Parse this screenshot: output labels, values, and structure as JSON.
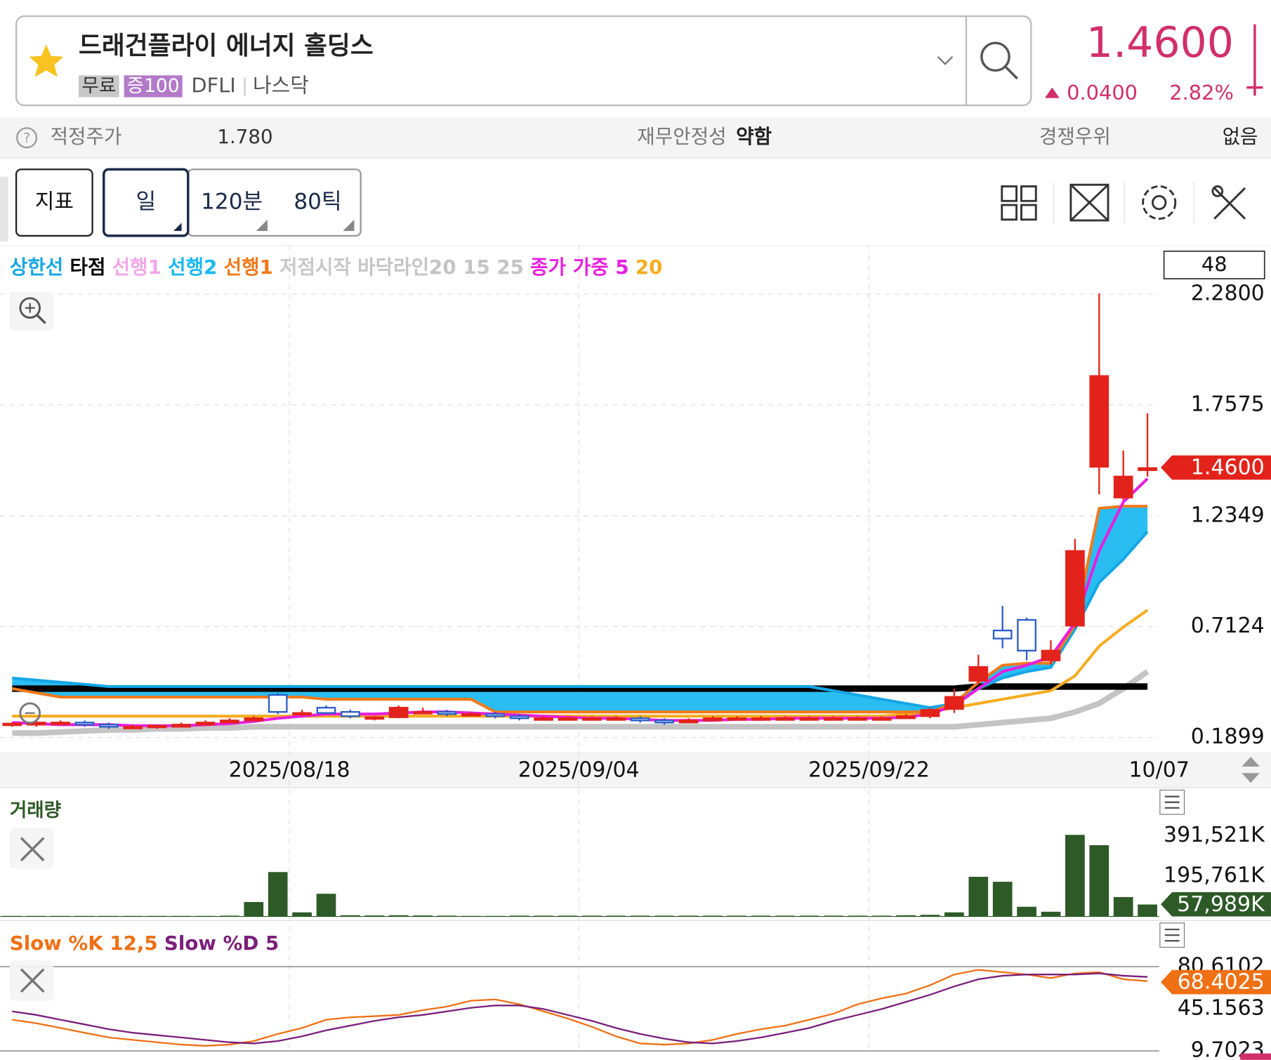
{
  "header": {
    "title": "드래건플라이 에너지 홀딩스",
    "badges": [
      "무료",
      "증100"
    ],
    "ticker": "DFLI",
    "market": "나스닥",
    "price": "1.4600",
    "change": "0.0400",
    "change_pct": "2.82%"
  },
  "info": {
    "fair_price_label": "적정주가",
    "fair_price": "1.780",
    "stability_label": "재무안정성",
    "stability": "약함",
    "advantage_label": "경쟁우위",
    "advantage": "없음"
  },
  "toolbar": {
    "tabs": [
      "지표",
      "일",
      "120분",
      "80틱"
    ]
  },
  "chart_data": [
    {
      "type": "candlestick",
      "count": 48,
      "up_color": "#e3231b",
      "down_color": "#2a5cc8",
      "open": [
        0.25,
        0.25,
        0.26,
        0.26,
        0.25,
        0.24,
        0.24,
        0.24,
        0.25,
        0.26,
        0.27,
        0.39,
        0.3,
        0.33,
        0.31,
        0.28,
        0.285,
        0.31,
        0.31,
        0.3,
        0.3,
        0.29,
        0.28,
        0.28,
        0.28,
        0.28,
        0.28,
        0.27,
        0.26,
        0.27,
        0.28,
        0.28,
        0.28,
        0.28,
        0.28,
        0.28,
        0.28,
        0.28,
        0.29,
        0.324,
        0.457,
        0.694,
        0.744,
        0.553,
        0.717,
        1.466,
        1.321,
        1.45
      ],
      "high": [
        0.26,
        0.27,
        0.27,
        0.27,
        0.26,
        0.25,
        0.25,
        0.26,
        0.27,
        0.28,
        0.29,
        0.4,
        0.32,
        0.34,
        0.32,
        0.29,
        0.34,
        0.33,
        0.32,
        0.31,
        0.31,
        0.3,
        0.29,
        0.29,
        0.29,
        0.29,
        0.29,
        0.28,
        0.28,
        0.29,
        0.29,
        0.29,
        0.29,
        0.29,
        0.29,
        0.29,
        0.29,
        0.3,
        0.33,
        0.419,
        0.58,
        0.81,
        0.755,
        0.648,
        1.126,
        2.284,
        1.543,
        1.718
      ],
      "low": [
        0.24,
        0.24,
        0.25,
        0.24,
        0.23,
        0.23,
        0.23,
        0.24,
        0.25,
        0.26,
        0.27,
        0.3,
        0.29,
        0.3,
        0.28,
        0.27,
        0.28,
        0.3,
        0.29,
        0.29,
        0.28,
        0.27,
        0.27,
        0.27,
        0.27,
        0.27,
        0.26,
        0.25,
        0.26,
        0.27,
        0.27,
        0.27,
        0.27,
        0.27,
        0.27,
        0.27,
        0.27,
        0.28,
        0.28,
        0.305,
        0.438,
        0.61,
        0.553,
        0.534,
        0.706,
        1.336,
        1.31,
        1.42
      ],
      "close": [
        0.255,
        0.26,
        0.26,
        0.25,
        0.24,
        0.24,
        0.245,
        0.25,
        0.26,
        0.27,
        0.28,
        0.31,
        0.305,
        0.305,
        0.29,
        0.285,
        0.33,
        0.31,
        0.3,
        0.3,
        0.29,
        0.28,
        0.28,
        0.28,
        0.28,
        0.28,
        0.27,
        0.26,
        0.27,
        0.28,
        0.28,
        0.28,
        0.28,
        0.28,
        0.28,
        0.28,
        0.28,
        0.29,
        0.32,
        0.381,
        0.522,
        0.656,
        0.599,
        0.599,
        1.069,
        1.894,
        1.42,
        1.46
      ],
      "series": [
        {
          "name": "상한선",
          "color": "#14a6e6",
          "values": [
            0.47,
            0.46,
            0.45,
            0.44,
            0.43,
            0.43,
            0.43,
            0.43,
            0.43,
            0.43,
            0.43,
            0.43,
            0.43,
            0.43,
            0.43,
            0.43,
            0.43,
            0.43,
            0.43,
            0.43,
            0.43,
            0.43,
            0.43,
            0.43,
            0.43,
            0.43,
            0.43,
            0.43,
            0.43,
            0.43,
            0.43,
            0.43,
            0.43,
            0.43,
            0.41,
            0.39,
            0.37,
            0.35,
            0.33,
            0.35,
            0.42,
            0.47,
            0.5,
            0.52,
            0.7,
            0.92,
            1.03,
            1.16
          ]
        },
        {
          "name": "타점",
          "color": "#000000",
          "values": [
            0.42,
            0.42,
            0.42,
            0.42,
            0.42,
            0.42,
            0.42,
            0.42,
            0.42,
            0.42,
            0.42,
            0.42,
            0.42,
            0.42,
            0.42,
            0.42,
            0.42,
            0.42,
            0.42,
            0.42,
            0.42,
            0.42,
            0.42,
            0.42,
            0.42,
            0.42,
            0.42,
            0.42,
            0.42,
            0.42,
            0.42,
            0.42,
            0.42,
            0.42,
            0.42,
            0.42,
            0.42,
            0.42,
            0.42,
            0.42,
            0.43,
            0.43,
            0.43,
            0.43,
            0.43,
            0.43,
            0.43,
            0.43
          ]
        },
        {
          "name": "선행1",
          "color": "#f4a6e8"
        },
        {
          "name": "선행2",
          "color": "#18b8f0"
        },
        {
          "name": "선행1",
          "color": "#f07a1a",
          "values": [
            0.42,
            0.4,
            0.38,
            0.38,
            0.38,
            0.38,
            0.38,
            0.38,
            0.38,
            0.38,
            0.38,
            0.38,
            0.38,
            0.37,
            0.37,
            0.37,
            0.37,
            0.37,
            0.37,
            0.37,
            0.31,
            0.31,
            0.31,
            0.31,
            0.31,
            0.31,
            0.31,
            0.31,
            0.31,
            0.31,
            0.31,
            0.31,
            0.31,
            0.31,
            0.31,
            0.31,
            0.31,
            0.31,
            0.31,
            0.35,
            0.45,
            0.53,
            0.54,
            0.54,
            0.72,
            1.27,
            1.28,
            1.28
          ]
        },
        {
          "name": "저점시작",
          "color": "#c8c8c8"
        },
        {
          "name": "바닥라인20 15 25",
          "color": "#c4c4c4",
          "values": [
            0.21,
            0.21,
            0.215,
            0.22,
            0.225,
            0.225,
            0.23,
            0.23,
            0.235,
            0.235,
            0.24,
            0.24,
            0.24,
            0.24,
            0.24,
            0.24,
            0.24,
            0.24,
            0.24,
            0.24,
            0.24,
            0.24,
            0.24,
            0.24,
            0.24,
            0.24,
            0.24,
            0.24,
            0.24,
            0.24,
            0.24,
            0.24,
            0.24,
            0.24,
            0.24,
            0.24,
            0.24,
            0.24,
            0.24,
            0.24,
            0.25,
            0.26,
            0.27,
            0.28,
            0.31,
            0.35,
            0.42,
            0.5
          ]
        },
        {
          "name": "종가 가중 5",
          "color": "#e81ee0",
          "values": [
            0.26,
            0.255,
            0.25,
            0.25,
            0.25,
            0.245,
            0.245,
            0.245,
            0.25,
            0.255,
            0.265,
            0.28,
            0.29,
            0.3,
            0.3,
            0.3,
            0.305,
            0.31,
            0.31,
            0.305,
            0.3,
            0.295,
            0.29,
            0.285,
            0.28,
            0.28,
            0.275,
            0.27,
            0.27,
            0.27,
            0.275,
            0.275,
            0.28,
            0.28,
            0.28,
            0.28,
            0.28,
            0.285,
            0.3,
            0.34,
            0.42,
            0.5,
            0.53,
            0.57,
            0.73,
            1.07,
            1.3,
            1.41
          ]
        },
        {
          "name": "20",
          "color": "#f5ac1e",
          "values": [
            0.29,
            0.29,
            0.29,
            0.29,
            0.29,
            0.29,
            0.29,
            0.29,
            0.29,
            0.29,
            0.29,
            0.29,
            0.29,
            0.29,
            0.29,
            0.29,
            0.29,
            0.29,
            0.29,
            0.29,
            0.29,
            0.29,
            0.29,
            0.29,
            0.29,
            0.29,
            0.29,
            0.29,
            0.29,
            0.29,
            0.29,
            0.29,
            0.29,
            0.29,
            0.29,
            0.29,
            0.29,
            0.3,
            0.31,
            0.33,
            0.35,
            0.37,
            0.39,
            0.41,
            0.48,
            0.62,
            0.71,
            0.79
          ]
        }
      ],
      "ylim": [
        0.1899,
        2.4634
      ],
      "yticks": [
        0.1899,
        0.7124,
        1.2349,
        1.7575,
        {
          "value": 2.28,
          "label": "2.2800"
        }
      ],
      "grid": true,
      "last_label": "1.4600",
      "x_labels": [
        "2025/08/18",
        "2025/09/04",
        "2025/09/22",
        "10/07"
      ]
    },
    {
      "type": "bar",
      "title": "거래량",
      "color": "#2d5a27",
      "values": [
        3000,
        3000,
        3000,
        3000,
        3000,
        3000,
        3000,
        3000,
        3000,
        4000,
        70000,
        215000,
        20000,
        110000,
        6000,
        5000,
        6000,
        5000,
        4000,
        3000,
        3000,
        4000,
        4000,
        4000,
        4000,
        4000,
        4000,
        4000,
        4000,
        4000,
        4000,
        4000,
        4000,
        4000,
        4000,
        4000,
        4000,
        6000,
        8000,
        20000,
        192000,
        168000,
        47000,
        23000,
        395000,
        345000,
        94000,
        57989
      ],
      "ylim": [
        0,
        600000
      ],
      "yticks": [
        {
          "value": 195761,
          "label": "195,761K"
        },
        {
          "value": 391521,
          "label": "391,521K"
        }
      ],
      "last_label": "57,989K"
    },
    {
      "type": "line",
      "series": [
        {
          "name": "Slow %K 12,5",
          "color": "#f07014",
          "values": [
            36,
            33,
            29,
            25,
            21,
            19,
            17,
            15,
            14,
            15,
            18,
            24,
            29,
            36,
            38,
            39,
            40,
            44,
            47,
            52,
            53,
            49,
            43,
            37,
            30,
            22,
            16,
            15,
            16,
            19,
            24,
            28,
            31,
            36,
            41,
            49,
            54,
            58,
            65,
            74,
            78,
            76,
            74,
            71,
            75,
            76,
            70,
            68.4025
          ]
        },
        {
          "name": "Slow %D 5",
          "color": "#7a1f7a",
          "values": [
            43,
            40,
            36,
            32,
            28,
            25,
            23,
            21,
            19,
            17,
            16,
            18,
            22,
            27,
            31,
            35,
            38,
            40,
            43,
            46,
            48,
            48,
            45,
            40,
            35,
            29,
            24,
            20,
            17,
            16,
            18,
            21,
            25,
            29,
            35,
            40,
            45,
            51,
            57,
            64,
            70,
            73,
            74,
            74,
            74,
            75,
            73,
            72
          ]
        }
      ],
      "ylim": [
        7.6,
        116.7
      ],
      "yticks": [
        9.7023,
        45.1563,
        80.6102
      ]
    }
  ]
}
